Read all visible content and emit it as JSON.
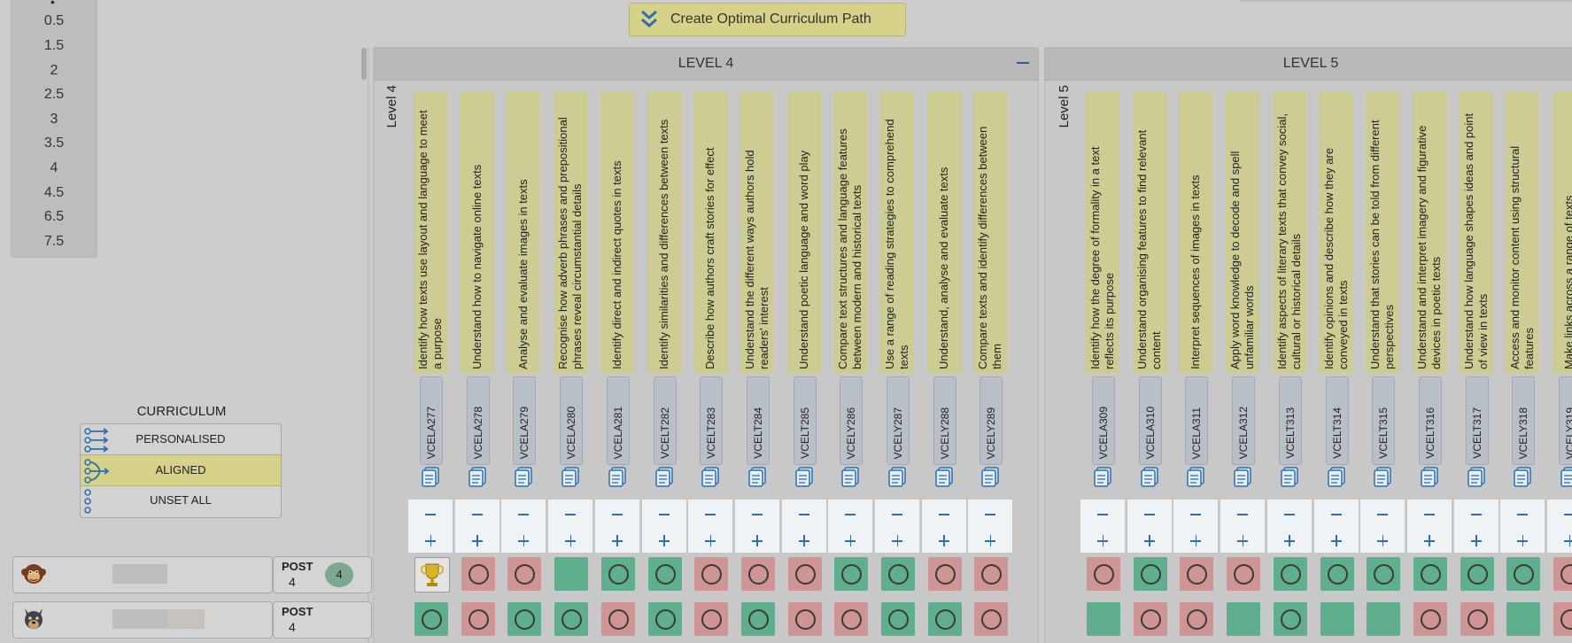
{
  "sidebar": {
    "values": [
      "0.5",
      "1.5",
      "2",
      "2.5",
      "3",
      "3.5",
      "4",
      "4.5",
      "6.5",
      "7.5"
    ]
  },
  "toolbar": {
    "create_path_label": "Create Optimal Curriculum Path"
  },
  "levels": [
    {
      "title": "LEVEL 4",
      "axis_label": "Level 4",
      "collapse_visible": true,
      "outcomes": [
        {
          "code": "VCELA277",
          "desc": [
            "Identify how texts use layout and language to meet",
            "a purpose"
          ],
          "row1": "trophy",
          "row2": "green-ring"
        },
        {
          "code": "VCELA278",
          "desc": [
            "Understand how to navigate online texts"
          ],
          "row1": "red-ring",
          "row2": "red-ring"
        },
        {
          "code": "VCELA279",
          "desc": [
            "Analyse and evaluate images in texts"
          ],
          "row1": "red-ring",
          "row2": "green-ring"
        },
        {
          "code": "VCELA280",
          "desc": [
            "Recognise how adverb phrases and prepositional",
            "phrases reveal circumstantial details"
          ],
          "row1": "green",
          "row2": "green-ring"
        },
        {
          "code": "VCELA281",
          "desc": [
            "Identify direct and indirect quotes in texts"
          ],
          "row1": "green-ring",
          "row2": "red-ring"
        },
        {
          "code": "VCELT282",
          "desc": [
            "Identify similarities and differences between texts"
          ],
          "row1": "green-ring",
          "row2": "green-ring"
        },
        {
          "code": "VCELT283",
          "desc": [
            "Describe how authors craft stories for effect"
          ],
          "row1": "red-ring",
          "row2": "red-ring"
        },
        {
          "code": "VCELT284",
          "desc": [
            "Understand the different ways authors hold",
            "readers' interest"
          ],
          "row1": "red-ring",
          "row2": "green-ring"
        },
        {
          "code": "VCELT285",
          "desc": [
            "Understand poetic language and word play"
          ],
          "row1": "red-ring",
          "row2": "red-ring"
        },
        {
          "code": "VCELY286",
          "desc": [
            "Compare text structures and language features",
            "between modern and historical texts"
          ],
          "row1": "green-ring",
          "row2": "red-ring"
        },
        {
          "code": "VCELY287",
          "desc": [
            "Use a range of reading strategies to comprehend",
            "texts"
          ],
          "row1": "green-ring",
          "row2": "green-ring"
        },
        {
          "code": "VCELY288",
          "desc": [
            "Understand, analyse and evaluate texts"
          ],
          "row1": "red-ring",
          "row2": "green-ring"
        },
        {
          "code": "VCELY289",
          "desc": [
            "Compare texts and identify differences between",
            "them"
          ],
          "row1": "red-ring",
          "row2": "red-ring"
        }
      ]
    },
    {
      "title": "LEVEL 5",
      "axis_label": "Level 5",
      "outcomes": [
        {
          "code": "VCELA309",
          "desc": [
            "Identify how the degree of formality in a text",
            "reflects its purpose"
          ],
          "row1": "red-ring",
          "row2": "green"
        },
        {
          "code": "VCELA310",
          "desc": [
            "Understand organising features to find relevant",
            "content"
          ],
          "row1": "green-ring",
          "row2": "red-ring"
        },
        {
          "code": "VCELA311",
          "desc": [
            "Interpret sequences of images in texts"
          ],
          "row1": "red-ring",
          "row2": "red-ring"
        },
        {
          "code": "VCELA312",
          "desc": [
            "Apply word knowledge to decode and spell",
            "unfamiliar words"
          ],
          "row1": "red-ring",
          "row2": "green"
        },
        {
          "code": "VCELT313",
          "desc": [
            "Identify aspects of literary texts that convey social,",
            "cultural or historical details"
          ],
          "row1": "green-ring",
          "row2": "green-ring"
        },
        {
          "code": "VCELT314",
          "desc": [
            "Identify opinions and describe how they are",
            "conveyed in texts"
          ],
          "row1": "green-ring",
          "row2": "green"
        },
        {
          "code": "VCELT315",
          "desc": [
            "Understand that stories can be told from different",
            "perspectives"
          ],
          "row1": "green-ring",
          "row2": "green"
        },
        {
          "code": "VCELT316",
          "desc": [
            "Understand and interpret imagery and figurative",
            "devices in poetic texts"
          ],
          "row1": "green-ring",
          "row2": "red-ring"
        },
        {
          "code": "VCELT317",
          "desc": [
            "Understand how language shapes ideas and point",
            "of view in texts"
          ],
          "row1": "green-ring",
          "row2": "red-ring"
        },
        {
          "code": "VCELY318",
          "desc": [
            "Access and monitor content using structural",
            "features"
          ],
          "row1": "green-ring",
          "row2": "green"
        },
        {
          "code": "VCELY319",
          "desc": [
            "Make links across a range of texts"
          ],
          "row1": "red-ring",
          "row2": "red-ring"
        }
      ]
    }
  ],
  "curriculum": {
    "title": "CURRICULUM",
    "options": [
      {
        "label": "PERSONALISED",
        "selected": false
      },
      {
        "label": "ALIGNED",
        "selected": true
      },
      {
        "label": "UNSET ALL",
        "selected": false
      }
    ]
  },
  "students": [
    {
      "post_label": "POST",
      "post_value": "4",
      "badge": "4"
    },
    {
      "post_label": "POST",
      "post_value": "4",
      "badge": ""
    }
  ],
  "colors": {
    "green": "#5fae8e",
    "red": "#cf9494",
    "aligned": "#d6d28a",
    "accent": "#2c6fb0"
  }
}
